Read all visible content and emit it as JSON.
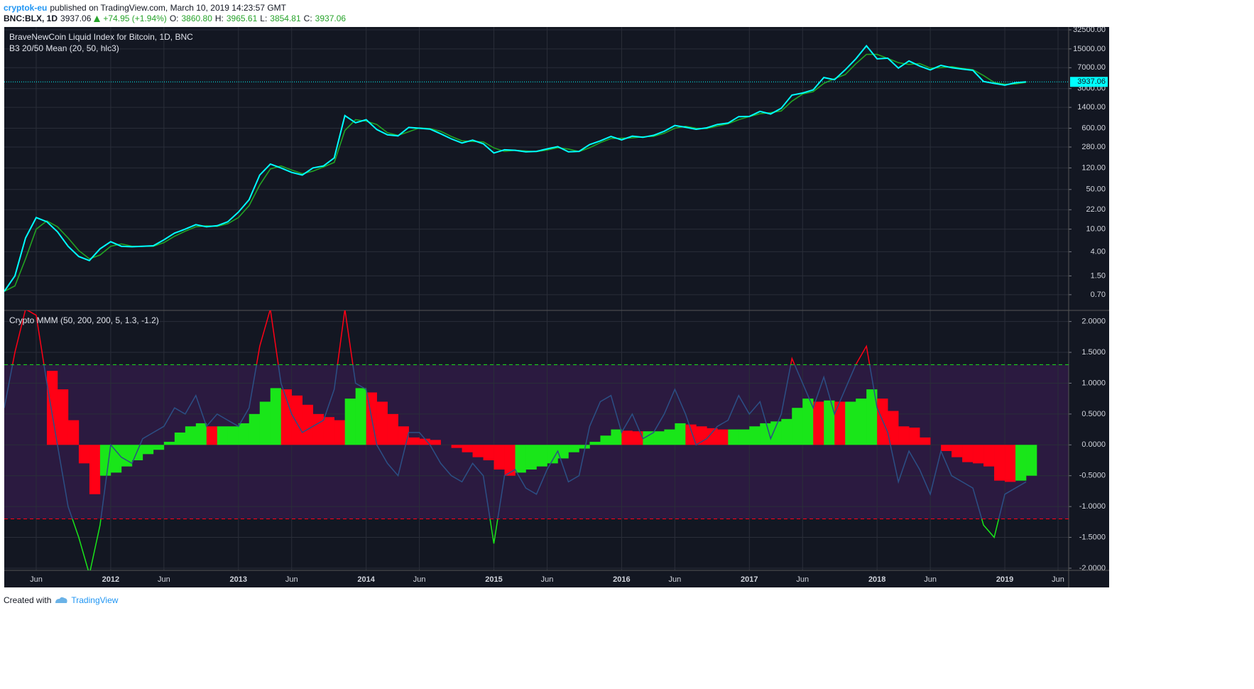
{
  "header": {
    "author": "cryptok-eu",
    "published": "published on TradingView.com, March 10, 2019 14:23:57 GMT",
    "symbol": "BNC:BLX, 1D",
    "last": "3937.06",
    "change": "+74.95 (+1.94%)",
    "ohlc": [
      {
        "label": "O:",
        "value": "3860.80"
      },
      {
        "label": "H:",
        "value": "3965.61"
      },
      {
        "label": "L:",
        "value": "3854.81"
      },
      {
        "label": "C:",
        "value": "3937.06"
      }
    ]
  },
  "chart_data": [
    {
      "type": "line",
      "title": "BraveNewCoin Liquid Index for Bitcoin, 1D, BNC",
      "subtitle": "B3 20/50 Mean (20, 50, hlc3)",
      "log_scale": true,
      "grid": true,
      "x": [
        "2011-03",
        "2011-04",
        "2011-05",
        "2011-06",
        "2011-07",
        "2011-08",
        "2011-09",
        "2011-10",
        "2011-11",
        "2011-12",
        "2012-01",
        "2012-02",
        "2012-03",
        "2012-04",
        "2012-05",
        "2012-06",
        "2012-07",
        "2012-08",
        "2012-09",
        "2012-10",
        "2012-11",
        "2012-12",
        "2013-01",
        "2013-02",
        "2013-03",
        "2013-04",
        "2013-05",
        "2013-06",
        "2013-07",
        "2013-08",
        "2013-09",
        "2013-10",
        "2013-11",
        "2013-12",
        "2014-01",
        "2014-02",
        "2014-03",
        "2014-04",
        "2014-05",
        "2014-06",
        "2014-07",
        "2014-08",
        "2014-09",
        "2014-10",
        "2014-11",
        "2014-12",
        "2015-01",
        "2015-02",
        "2015-03",
        "2015-04",
        "2015-05",
        "2015-06",
        "2015-07",
        "2015-08",
        "2015-09",
        "2015-10",
        "2015-11",
        "2015-12",
        "2016-01",
        "2016-02",
        "2016-03",
        "2016-04",
        "2016-05",
        "2016-06",
        "2016-07",
        "2016-08",
        "2016-09",
        "2016-10",
        "2016-11",
        "2016-12",
        "2017-01",
        "2017-02",
        "2017-03",
        "2017-04",
        "2017-05",
        "2017-06",
        "2017-07",
        "2017-08",
        "2017-09",
        "2017-10",
        "2017-11",
        "2017-12",
        "2018-01",
        "2018-02",
        "2018-03",
        "2018-04",
        "2018-05",
        "2018-06",
        "2018-07",
        "2018-08",
        "2018-09",
        "2018-10",
        "2018-11",
        "2018-12",
        "2019-01",
        "2019-02",
        "2019-03"
      ],
      "series": [
        {
          "color": "#00ffff",
          "values": [
            0.8,
            1.5,
            7,
            16,
            13.5,
            9,
            5,
            3.3,
            2.8,
            4.5,
            6,
            5,
            4.9,
            5,
            5.1,
            6.5,
            8.5,
            10,
            12,
            11,
            11.5,
            13.5,
            20,
            33,
            90,
            140,
            120,
            100,
            90,
            120,
            130,
            180,
            1000,
            750,
            850,
            570,
            460,
            440,
            620,
            600,
            580,
            480,
            390,
            330,
            370,
            320,
            220,
            250,
            245,
            230,
            235,
            260,
            285,
            230,
            235,
            310,
            360,
            430,
            375,
            435,
            415,
            450,
            530,
            670,
            625,
            575,
            610,
            700,
            740,
            960,
            970,
            1190,
            1070,
            1350,
            2300,
            2500,
            2850,
            4700,
            4300,
            6400,
            10000,
            17000,
            10000,
            10300,
            6900,
            9200,
            7500,
            6400,
            7700,
            7000,
            6600,
            6300,
            4000,
            3700,
            3450,
            3800,
            3937.06
          ]
        },
        {
          "color": "#22a322",
          "values": [
            0.8,
            1.0,
            3,
            10,
            14,
            11,
            7,
            4.2,
            3.0,
            3.5,
            5,
            5.5,
            5,
            5,
            5,
            5.8,
            7.5,
            9.2,
            11,
            11.5,
            11.2,
            12.5,
            16,
            26,
            60,
            115,
            130,
            110,
            95,
            105,
            125,
            150,
            550,
            850,
            800,
            700,
            500,
            450,
            520,
            610,
            590,
            530,
            430,
            360,
            350,
            345,
            270,
            235,
            245,
            238,
            232,
            248,
            272,
            258,
            233,
            272,
            335,
            395,
            400,
            405,
            425,
            432,
            490,
            600,
            650,
            600,
            592,
            655,
            720,
            850,
            965,
            1080,
            1130,
            1210,
            1800,
            2400,
            2650,
            3700,
            4500,
            5300,
            8200,
            12000,
            12000,
            10200,
            8600,
            8000,
            8300,
            6900,
            7000,
            7300,
            6800,
            6450,
            5100,
            3850,
            3580,
            3620,
            3860
          ]
        }
      ],
      "last_value": 3937.06,
      "last_color": "#00ffff",
      "ylim": [
        0.37,
        36500
      ],
      "yticks": [
        {
          "value": 0.7,
          "label": "0.70"
        },
        {
          "value": 1.5,
          "label": "1.50"
        },
        {
          "value": 4,
          "label": "4.00"
        },
        {
          "value": 10,
          "label": "10.00"
        },
        {
          "value": 22,
          "label": "22.00"
        },
        {
          "value": 50,
          "label": "50.00"
        },
        {
          "value": 120,
          "label": "120.00"
        },
        {
          "value": 280,
          "label": "280.00"
        },
        {
          "value": 600,
          "label": "600.00"
        },
        {
          "value": 1400,
          "label": "1400.00"
        },
        {
          "value": 3000,
          "label": "3000.00"
        },
        {
          "value": 7000,
          "label": "7000.00"
        },
        {
          "value": 15000,
          "label": "15000.00"
        },
        {
          "value": 32500,
          "label": "32500.00"
        }
      ]
    },
    {
      "type": "bar",
      "title": "Crypto MMM (50, 200, 200, 5, 1.3, -1.2)",
      "grid": true,
      "rising_color": "#19e619",
      "falling_color": "#ff0015",
      "x": [
        "2011-07",
        "2011-08",
        "2011-09",
        "2011-10",
        "2011-11",
        "2011-12",
        "2012-01",
        "2012-02",
        "2012-03",
        "2012-04",
        "2012-05",
        "2012-06",
        "2012-07",
        "2012-08",
        "2012-09",
        "2012-10",
        "2012-11",
        "2012-12",
        "2013-01",
        "2013-02",
        "2013-03",
        "2013-04",
        "2013-05",
        "2013-06",
        "2013-07",
        "2013-08",
        "2013-09",
        "2013-10",
        "2013-11",
        "2013-12",
        "2014-01",
        "2014-02",
        "2014-03",
        "2014-04",
        "2014-05",
        "2014-06",
        "2014-07",
        "2014-08",
        "2014-09",
        "2014-10",
        "2014-11",
        "2014-12",
        "2015-01",
        "2015-02",
        "2015-03",
        "2015-04",
        "2015-05",
        "2015-06",
        "2015-07",
        "2015-08",
        "2015-09",
        "2015-10",
        "2015-11",
        "2015-12",
        "2016-01",
        "2016-02",
        "2016-03",
        "2016-04",
        "2016-05",
        "2016-06",
        "2016-07",
        "2016-08",
        "2016-09",
        "2016-10",
        "2016-11",
        "2016-12",
        "2017-01",
        "2017-02",
        "2017-03",
        "2017-04",
        "2017-05",
        "2017-06",
        "2017-07",
        "2017-08",
        "2017-09",
        "2017-10",
        "2017-11",
        "2017-12",
        "2018-01",
        "2018-02",
        "2018-03",
        "2018-04",
        "2018-05",
        "2018-06",
        "2018-07",
        "2018-08",
        "2018-09",
        "2018-10",
        "2018-11",
        "2018-12",
        "2019-01",
        "2019-02",
        "2019-03"
      ],
      "values": [
        1.2,
        0.9,
        0.4,
        -0.3,
        -0.8,
        -0.5,
        -0.45,
        -0.35,
        -0.25,
        -0.15,
        -0.08,
        0.05,
        0.2,
        0.3,
        0.35,
        0.3,
        0.3,
        0.3,
        0.35,
        0.5,
        0.7,
        0.92,
        0.9,
        0.8,
        0.65,
        0.5,
        0.45,
        0.4,
        0.75,
        0.92,
        0.85,
        0.7,
        0.5,
        0.3,
        0.12,
        0.1,
        0.08,
        0.0,
        -0.05,
        -0.12,
        -0.2,
        -0.25,
        -0.4,
        -0.5,
        -0.45,
        -0.4,
        -0.35,
        -0.3,
        -0.22,
        -0.12,
        -0.06,
        0.05,
        0.15,
        0.25,
        0.23,
        0.22,
        0.22,
        0.22,
        0.25,
        0.35,
        0.33,
        0.3,
        0.27,
        0.25,
        0.25,
        0.25,
        0.3,
        0.35,
        0.38,
        0.42,
        0.6,
        0.75,
        0.7,
        0.72,
        0.7,
        0.7,
        0.75,
        0.9,
        0.75,
        0.55,
        0.3,
        0.28,
        0.12,
        0.0,
        -0.1,
        -0.2,
        -0.28,
        -0.3,
        -0.35,
        -0.58,
        -0.6,
        -0.58,
        -0.5
      ],
      "line": {
        "color": "#2b4f85",
        "above_color": "#ff0015",
        "below_color": "#19e619",
        "x": [
          "2011-03",
          "2011-04",
          "2011-05",
          "2011-06",
          "2011-07",
          "2011-08",
          "2011-09",
          "2011-10",
          "2011-11",
          "2011-12",
          "2012-01",
          "2012-02",
          "2012-03",
          "2012-04",
          "2012-05",
          "2012-06",
          "2012-07",
          "2012-08",
          "2012-09",
          "2012-10",
          "2012-11",
          "2012-12",
          "2013-01",
          "2013-02",
          "2013-03",
          "2013-04",
          "2013-05",
          "2013-06",
          "2013-07",
          "2013-08",
          "2013-09",
          "2013-10",
          "2013-11",
          "2013-12",
          "2014-01",
          "2014-02",
          "2014-03",
          "2014-04",
          "2014-05",
          "2014-06",
          "2014-07",
          "2014-08",
          "2014-09",
          "2014-10",
          "2014-11",
          "2014-12",
          "2015-01",
          "2015-02",
          "2015-03",
          "2015-04",
          "2015-05",
          "2015-06",
          "2015-07",
          "2015-08",
          "2015-09",
          "2015-10",
          "2015-11",
          "2015-12",
          "2016-01",
          "2016-02",
          "2016-03",
          "2016-04",
          "2016-05",
          "2016-06",
          "2016-07",
          "2016-08",
          "2016-09",
          "2016-10",
          "2016-11",
          "2016-12",
          "2017-01",
          "2017-02",
          "2017-03",
          "2017-04",
          "2017-05",
          "2017-06",
          "2017-07",
          "2017-08",
          "2017-09",
          "2017-10",
          "2017-11",
          "2017-12",
          "2018-01",
          "2018-02",
          "2018-03",
          "2018-04",
          "2018-05",
          "2018-06",
          "2018-07",
          "2018-08",
          "2018-09",
          "2018-10",
          "2018-11",
          "2018-12",
          "2019-01",
          "2019-02",
          "2019-03"
        ],
        "values": [
          0.6,
          1.5,
          2.2,
          2.1,
          1.0,
          0.0,
          -1.0,
          -1.5,
          -2.1,
          -1.3,
          0.0,
          -0.2,
          -0.3,
          0.1,
          0.2,
          0.3,
          0.6,
          0.5,
          0.8,
          0.3,
          0.5,
          0.4,
          0.3,
          0.6,
          1.6,
          2.2,
          1.0,
          0.5,
          0.2,
          0.3,
          0.4,
          0.9,
          2.2,
          1.0,
          0.9,
          0.0,
          -0.3,
          -0.5,
          0.2,
          0.2,
          0.0,
          -0.3,
          -0.5,
          -0.6,
          -0.3,
          -0.5,
          -1.6,
          -0.5,
          -0.4,
          -0.7,
          -0.8,
          -0.4,
          -0.1,
          -0.6,
          -0.5,
          0.3,
          0.7,
          0.8,
          0.2,
          0.5,
          0.1,
          0.2,
          0.5,
          0.9,
          0.5,
          0.0,
          0.1,
          0.3,
          0.4,
          0.8,
          0.5,
          0.7,
          0.1,
          0.5,
          1.4,
          1.0,
          0.6,
          1.1,
          0.5,
          0.9,
          1.3,
          1.6,
          0.6,
          0.2,
          -0.6,
          -0.1,
          -0.4,
          -0.8,
          -0.1,
          -0.5,
          -0.6,
          -0.7,
          -1.3,
          -1.5,
          -0.8,
          -0.7,
          -0.6
        ]
      },
      "upper_level": 1.3,
      "upper_color": "#19e619",
      "lower_level": -1.2,
      "lower_color": "#ff0015",
      "band_color": "#2b1a40",
      "ylim": [
        -2.035,
        2.18
      ],
      "yticks": [
        {
          "value": 2,
          "label": "2.0000"
        },
        {
          "value": 1.5,
          "label": "1.5000"
        },
        {
          "value": 1,
          "label": "1.0000"
        },
        {
          "value": 0.5,
          "label": "0.5000"
        },
        {
          "value": 0,
          "label": "0.0000"
        },
        {
          "value": -0.5,
          "label": "-0.5000"
        },
        {
          "value": -1,
          "label": "-1.0000"
        },
        {
          "value": -1.5,
          "label": "-1.5000"
        },
        {
          "value": -2,
          "label": "-2.0000"
        }
      ],
      "xlim": [
        "2011-03",
        "2019-07"
      ],
      "xticks": [
        {
          "value": "2011-06",
          "label": "Jun"
        },
        {
          "value": "2012-01",
          "label": "2012"
        },
        {
          "value": "2012-06",
          "label": "Jun"
        },
        {
          "value": "2013-01",
          "label": "2013"
        },
        {
          "value": "2013-06",
          "label": "Jun"
        },
        {
          "value": "2014-01",
          "label": "2014"
        },
        {
          "value": "2014-06",
          "label": "Jun"
        },
        {
          "value": "2015-01",
          "label": "2015"
        },
        {
          "value": "2015-06",
          "label": "Jun"
        },
        {
          "value": "2016-01",
          "label": "2016"
        },
        {
          "value": "2016-06",
          "label": "Jun"
        },
        {
          "value": "2017-01",
          "label": "2017"
        },
        {
          "value": "2017-06",
          "label": "Jun"
        },
        {
          "value": "2018-01",
          "label": "2018"
        },
        {
          "value": "2018-06",
          "label": "Jun"
        },
        {
          "value": "2019-01",
          "label": "2019"
        },
        {
          "value": "2019-06",
          "label": "Jun"
        }
      ]
    }
  ],
  "footer": {
    "created": "Created with",
    "brand": "TradingView"
  }
}
